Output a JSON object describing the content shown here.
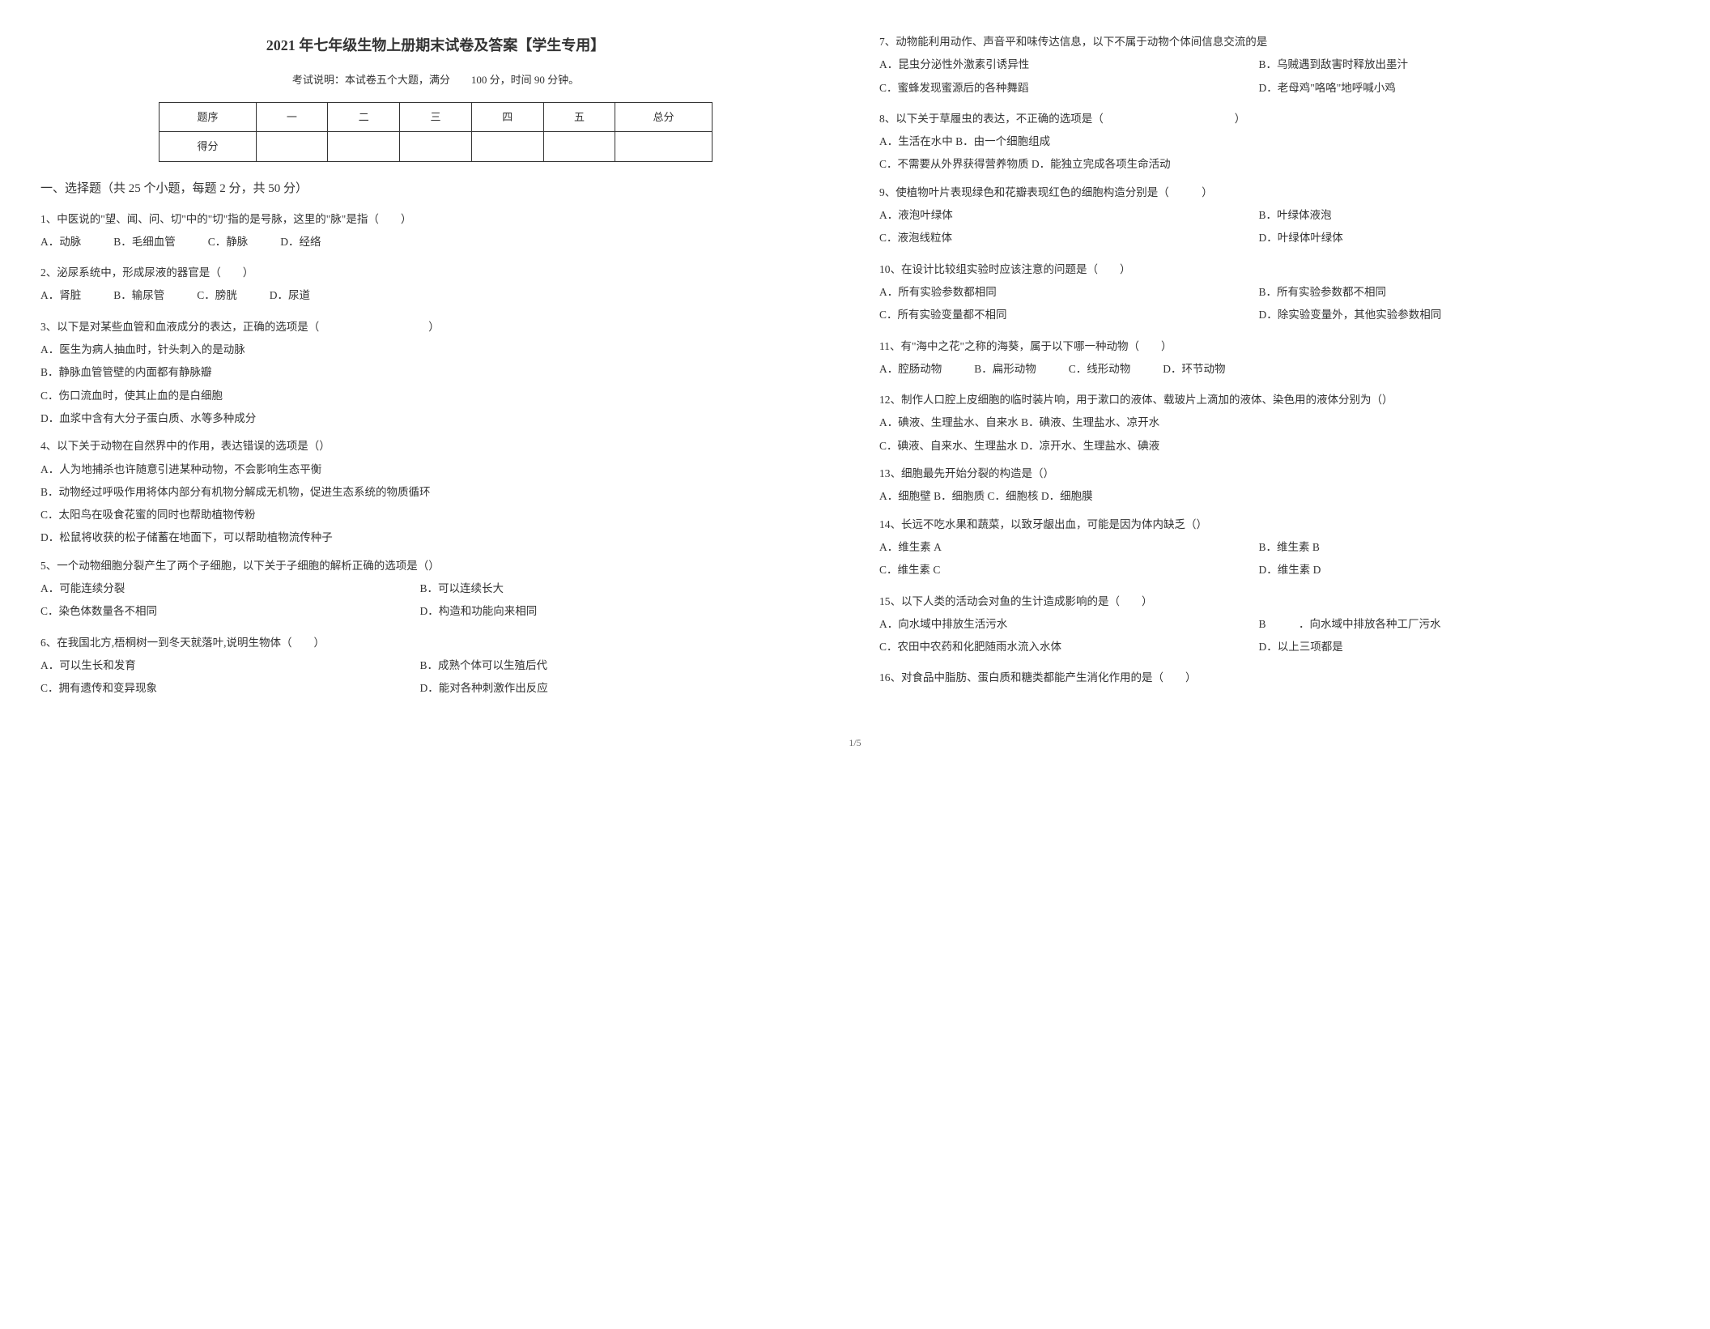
{
  "title": "2021 年七年级生物上册期末试卷及答案【学生专用】",
  "subtitle": "考试说明：本试卷五个大题，满分　　100 分，时间 90 分钟。",
  "scoreTable": {
    "headers": [
      "题序",
      "一",
      "二",
      "三",
      "四",
      "五",
      "总分"
    ],
    "rowLabel": "得分"
  },
  "sectionTitle": "一、选择题（共 25 个小题，每题 2 分，共 50 分）",
  "q1": {
    "stem": "1、中医说的\"望、闻、问、切\"中的\"切\"指的是号脉，这里的\"脉\"是指（　　）",
    "a": "A．动脉",
    "b": "B．毛细血管",
    "c": "C．静脉",
    "d": "D．经络"
  },
  "q2": {
    "stem": "2、泌尿系统中，形成尿液的器官是（　　）",
    "a": "A．肾脏",
    "b": "B．输尿管",
    "c": "C．膀胱",
    "d": "D．尿道"
  },
  "q3": {
    "stem": "3、以下是对某些血管和血液成分的表达，正确的选项是（　　　　　　　　　　）",
    "a": "A．医生为病人抽血时，针头刺入的是动脉",
    "b": "B．静脉血管管壁的内面都有静脉瓣",
    "c": "C．伤口流血时，使其止血的是白细胞",
    "d": "D．血浆中含有大分子蛋白质、水等多种成分"
  },
  "q4": {
    "stem": "4、以下关于动物在自然界中的作用，表达错误的选项是（）",
    "a": "A．人为地捕杀也许随意引进某种动物，不会影响生态平衡",
    "b": "B．动物经过呼吸作用将体内部分有机物分解成无机物，促进生态系统的物质循环",
    "c": "C．太阳鸟在吸食花蜜的同时也帮助植物传粉",
    "d": "D．松鼠将收获的松子储蓄在地面下，可以帮助植物流传种子"
  },
  "q5": {
    "stem": "5、一个动物细胞分裂产生了两个子细胞，以下关于子细胞的解析正确的选项是（）",
    "a": "A．可能连续分裂",
    "b": "B．可以连续长大",
    "c": "C．染色体数量各不相同",
    "d": "D．构造和功能向来相同"
  },
  "q6": {
    "stem": "6、在我国北方,梧桐树一到冬天就落叶,说明生物体（　　）",
    "a": "A．可以生长和发育",
    "b": "B．成熟个体可以生殖后代",
    "c": "C．拥有遗传和变异现象",
    "d": "D．能对各种刺激作出反应"
  },
  "q7": {
    "stem": "7、动物能利用动作、声音平和味传达信息，以下不属于动物个体间信息交流的是",
    "a": "A．昆虫分泌性外激素引诱异性",
    "b": "B．乌贼遇到敌害时释放出墨汁",
    "c": "C．蜜蜂发现蜜源后的各种舞蹈",
    "d": "D．老母鸡\"咯咯\"地呼喊小鸡"
  },
  "q8": {
    "stem": "8、以下关于草履虫的表达，不正确的选项是（　　　　　　　　　　　　）",
    "a": "A．生活在水中 B．由一个细胞组成",
    "c": "C．不需要从外界获得营养物质 D．能独立完成各项生命活动"
  },
  "q9": {
    "stem": "9、使植物叶片表现绿色和花瓣表现红色的细胞构造分别是（　　　）",
    "a": "A．液泡叶绿体",
    "b": "B．叶绿体液泡",
    "c": "C．液泡线粒体",
    "d": "D．叶绿体叶绿体"
  },
  "q10": {
    "stem": "10、在设计比较组实验时应该注意的问题是（　　）",
    "a": "A．所有实验参数都相同",
    "b": "B．所有实验参数都不相同",
    "c": "C．所有实验变量都不相同",
    "d": "D．除实验变量外，其他实验参数相同"
  },
  "q11": {
    "stem": "11、有\"海中之花\"之称的海葵，属于以下哪一种动物（　　）",
    "a": "A．腔肠动物",
    "b": "B．扁形动物",
    "c": "C．线形动物",
    "d": "D．环节动物"
  },
  "q12": {
    "stem": "12、制作人口腔上皮细胞的临时装片响，用于漱口的液体、载玻片上滴加的液体、染色用的液体分别为（）",
    "a": "A．碘液、生理盐水、自来水 B．碘液、生理盐水、凉开水",
    "c": "C．碘液、自来水、生理盐水 D．凉开水、生理盐水、碘液"
  },
  "q13": {
    "stem": "13、细胞最先开始分裂的构造是（）",
    "a": "A．细胞壁 B．细胞质 C．细胞核 D．细胞膜"
  },
  "q14": {
    "stem": "14、长远不吃水果和蔬菜，以致牙龈出血，可能是因为体内缺乏（）",
    "a": "A．维生素 A",
    "b": "B．维生素 B",
    "c": "C．维生素 C",
    "d": "D．维生素 D"
  },
  "q15": {
    "stem": "15、以下人类的活动会对鱼的生计造成影响的是（　　）",
    "a": "A．向水域中排放生活污水",
    "b": "B　　　．向水域中排放各种工厂污水",
    "c": "C．农田中农药和化肥随雨水流入水体",
    "d": "D．以上三项都是"
  },
  "q16": {
    "stem": "16、对食品中脂肪、蛋白质和糖类都能产生消化作用的是（　　）"
  },
  "pageNumber": "1/5"
}
